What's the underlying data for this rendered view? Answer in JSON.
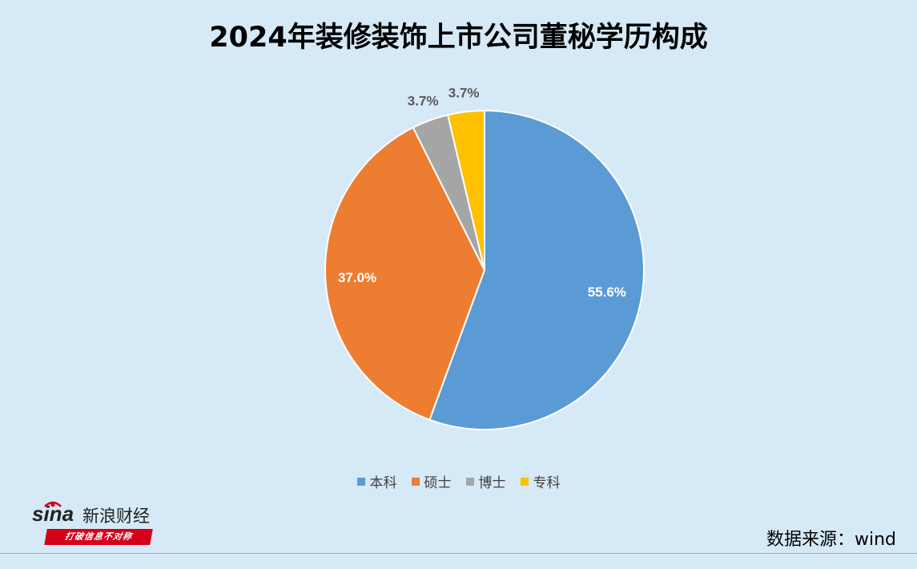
{
  "chart_data": {
    "type": "pie",
    "title": "2024年装修装饰上市公司董秘学历构成",
    "categories": [
      "本科",
      "硕士",
      "博士",
      "专科"
    ],
    "values": [
      55.6,
      37.0,
      3.7,
      3.7
    ],
    "labels": [
      "55.6%",
      "37.0%",
      "3.7%",
      "3.7%"
    ],
    "colors": [
      "#5b9bd5",
      "#ed7d31",
      "#a5a5a5",
      "#ffc000"
    ],
    "label_colors": [
      "#ffffff",
      "#ffffff",
      "#595959",
      "#595959"
    ],
    "legend_placement": "bottom"
  },
  "legend": {
    "items": [
      {
        "label": "本科",
        "color": "#5b9bd5"
      },
      {
        "label": "硕士",
        "color": "#ed7d31"
      },
      {
        "label": "博士",
        "color": "#a5a5a5"
      },
      {
        "label": "专科",
        "color": "#ffc000"
      }
    ]
  },
  "logo": {
    "brand": "sina",
    "name": "新浪财经",
    "slogan": "打破信息不对称"
  },
  "source": "数据来源：wind",
  "colors": {
    "background": "#d6e9f7",
    "slogan_bg": "#d4001a"
  }
}
